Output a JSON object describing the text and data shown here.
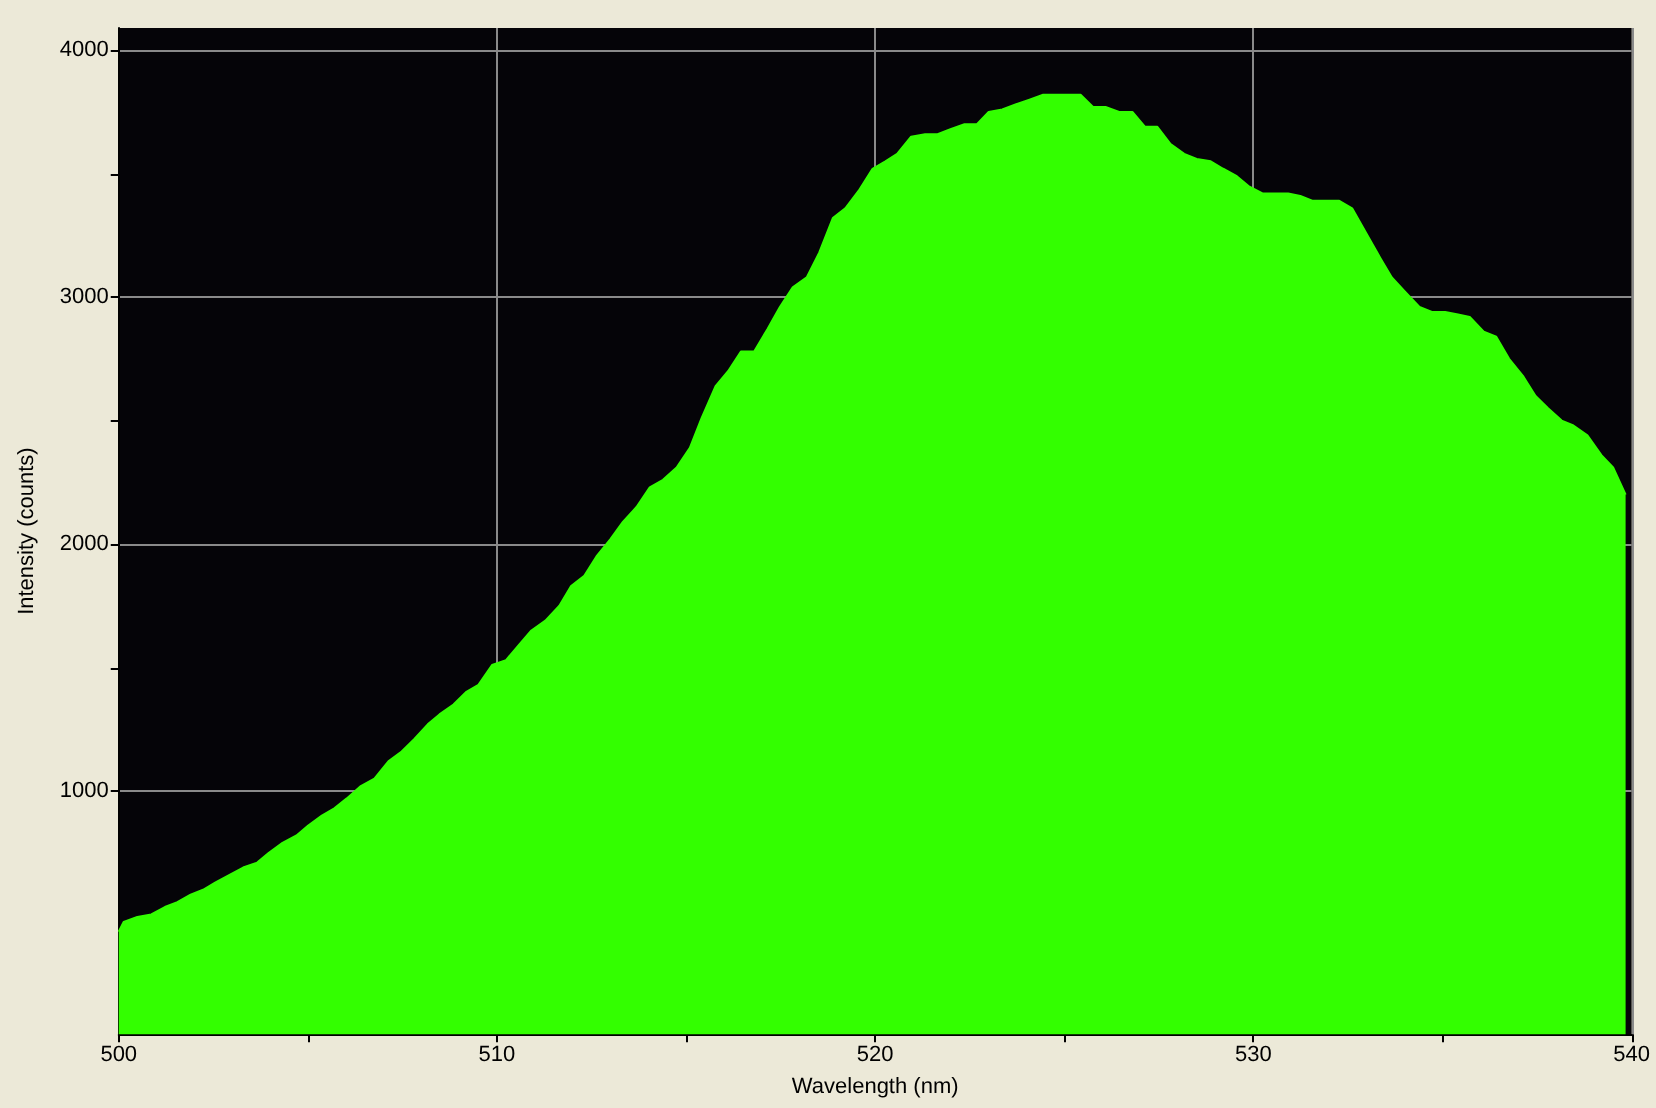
{
  "chart_data": {
    "type": "area",
    "xlabel": "Wavelength (nm)",
    "ylabel": "Intensity (counts)",
    "xlim": [
      500,
      540
    ],
    "ylim": [
      15,
      4090
    ],
    "xticks": [
      500,
      {
        "value": 505,
        "label": null
      },
      510,
      {
        "value": 515,
        "label": null
      },
      520,
      {
        "value": 525,
        "label": null
      },
      530,
      {
        "value": 535,
        "label": null
      },
      540
    ],
    "yticks": [
      1000,
      {
        "value": 1500,
        "label": null
      },
      2000,
      {
        "value": 2500,
        "label": null
      },
      3000,
      {
        "value": 3500,
        "label": null
      },
      4000
    ],
    "grid": true,
    "marker": "none",
    "series": [
      {
        "color": "#33ff00",
        "x": [
          500.0,
          500.13,
          500.49,
          500.86,
          501.22,
          501.55,
          501.9,
          502.23,
          502.56,
          502.93,
          503.29,
          503.66,
          503.97,
          504.33,
          504.7,
          505.01,
          505.37,
          505.7,
          506.03,
          506.4,
          506.76,
          507.13,
          507.48,
          507.81,
          508.17,
          508.48,
          508.85,
          509.18,
          509.51,
          509.87,
          510.24,
          510.57,
          510.91,
          511.28,
          511.65,
          511.96,
          512.3,
          512.63,
          513.0,
          513.33,
          513.69,
          514.04,
          514.39,
          514.75,
          515.1,
          515.41,
          515.78,
          516.11,
          516.45,
          516.8,
          517.15,
          517.48,
          517.82,
          518.19,
          518.52,
          518.88,
          519.21,
          519.56,
          519.93,
          520.27,
          520.58,
          520.95,
          521.32,
          521.65,
          521.99,
          522.36,
          522.69,
          523.0,
          523.36,
          523.71,
          524.08,
          524.44,
          524.77,
          525.1,
          525.43,
          525.76,
          526.09,
          526.45,
          526.8,
          527.13,
          527.46,
          527.81,
          528.17,
          528.5,
          528.87,
          529.2,
          529.56,
          529.87,
          530.24,
          530.57,
          530.92,
          531.24,
          531.57,
          531.92,
          532.27,
          532.61,
          532.98,
          533.35,
          533.66,
          534.02,
          534.39,
          534.72,
          535.07,
          535.41,
          535.72,
          536.09,
          536.42,
          536.76,
          537.13,
          537.46,
          537.79,
          538.15,
          538.46,
          538.83,
          539.2,
          539.51,
          539.84
        ],
        "values": [
          430,
          470,
          490,
          500,
          530,
          550,
          580,
          600,
          630,
          660,
          690,
          710,
          750,
          790,
          820,
          860,
          900,
          930,
          970,
          1020,
          1050,
          1120,
          1160,
          1210,
          1270,
          1310,
          1350,
          1400,
          1430,
          1510,
          1530,
          1590,
          1650,
          1690,
          1750,
          1830,
          1870,
          1950,
          2020,
          2090,
          2150,
          2230,
          2260,
          2310,
          2390,
          2510,
          2640,
          2700,
          2780,
          2780,
          2870,
          2960,
          3040,
          3080,
          3180,
          3320,
          3360,
          3430,
          3520,
          3550,
          3580,
          3650,
          3660,
          3660,
          3680,
          3700,
          3700,
          3750,
          3760,
          3780,
          3800,
          3820,
          3820,
          3820,
          3820,
          3770,
          3770,
          3750,
          3750,
          3690,
          3690,
          3620,
          3580,
          3560,
          3550,
          3520,
          3490,
          3450,
          3420,
          3420,
          3420,
          3410,
          3390,
          3390,
          3390,
          3360,
          3260,
          3160,
          3080,
          3020,
          2960,
          2940,
          2940,
          2930,
          2920,
          2860,
          2840,
          2750,
          2680,
          2600,
          2550,
          2500,
          2480,
          2440,
          2360,
          2310,
          2200
        ]
      }
    ]
  }
}
